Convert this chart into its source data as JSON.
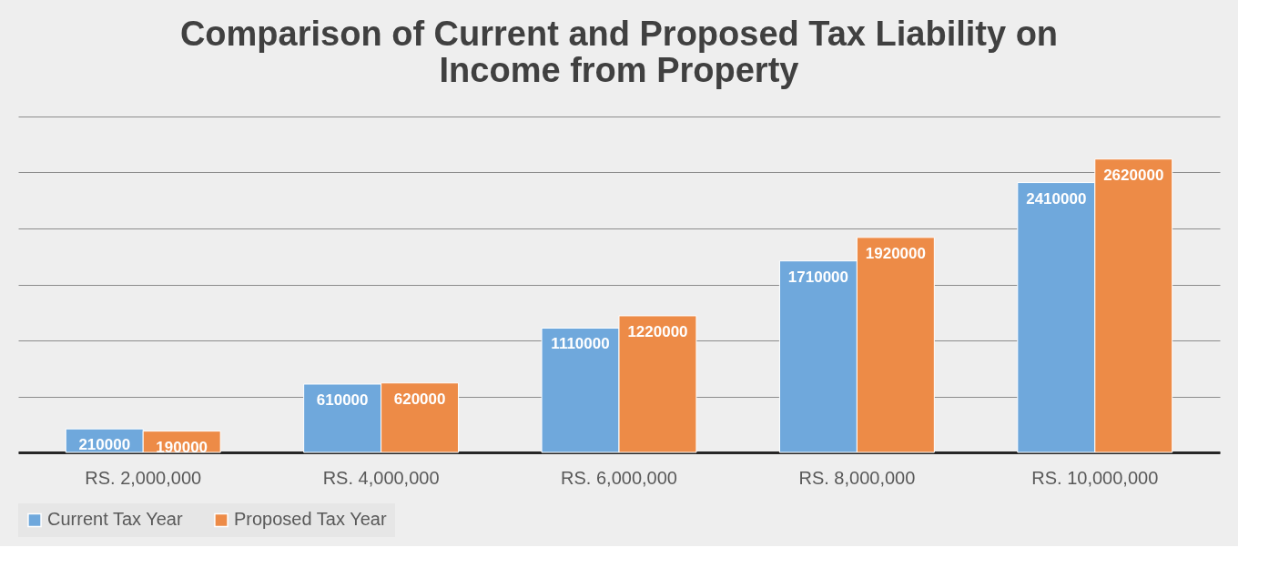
{
  "chart_data": {
    "type": "bar",
    "title": "Comparison of Current and Proposed Tax Liability on Income from Property",
    "categories": [
      "RS. 2,000,000",
      "RS. 4,000,000",
      "RS. 6,000,000",
      "RS. 8,000,000",
      "RS. 10,000,000"
    ],
    "series": [
      {
        "name": "Current Tax Year",
        "color": "#6fa8dc",
        "values": [
          210000,
          610000,
          1110000,
          1710000,
          2410000
        ]
      },
      {
        "name": "Proposed Tax Year",
        "color": "#ed8b47",
        "values": [
          190000,
          620000,
          1220000,
          1920000,
          2620000
        ]
      }
    ],
    "ylim": [
      0,
      3000000
    ],
    "yticks": [
      {
        "value": 0,
        "label": null
      },
      {
        "value": 500000,
        "label": null
      },
      {
        "value": 1000000,
        "label": null
      },
      {
        "value": 1500000,
        "label": null
      },
      {
        "value": 2000000,
        "label": null
      },
      {
        "value": 2500000,
        "label": null
      },
      {
        "value": 3000000,
        "label": null
      }
    ],
    "tick_labels": "x",
    "grid": "y",
    "legend": "bottom",
    "data_labels": true
  }
}
